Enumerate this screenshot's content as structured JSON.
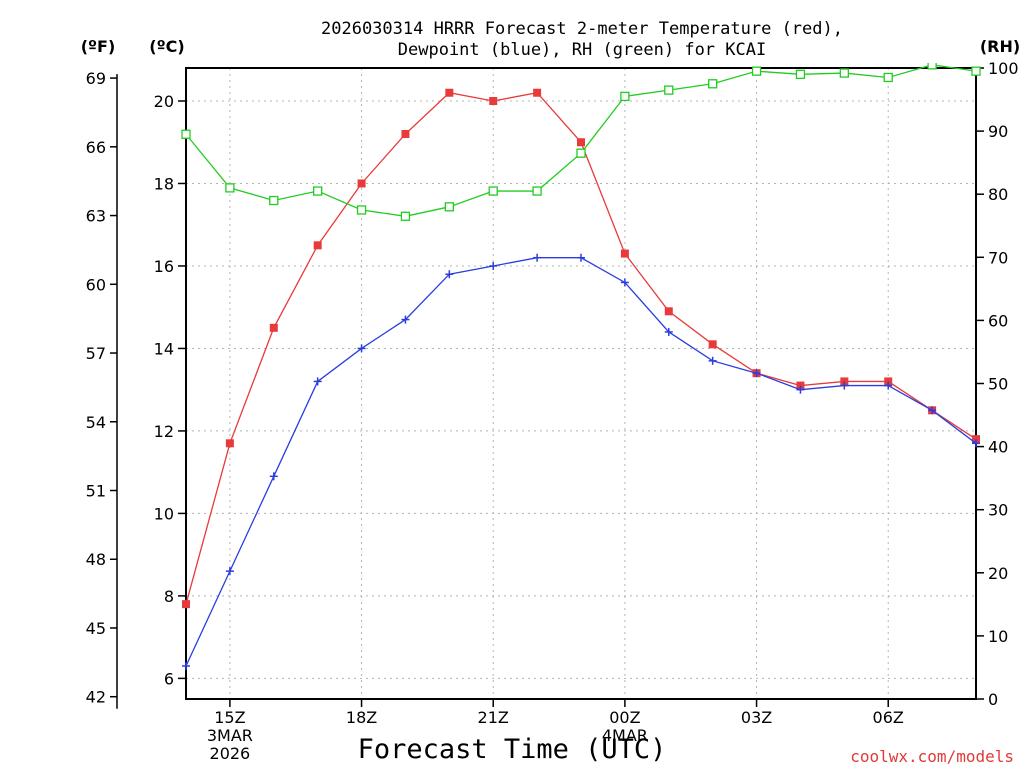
{
  "chart_data": {
    "type": "line",
    "title_lines": [
      "2026030314 HRRR Forecast 2-meter Temperature (red),",
      "Dewpoint (blue), RH (green) for KCAI"
    ],
    "xlabel": "Forecast Time (UTC)",
    "credit": "coolwx.com/models",
    "unit_labels": {
      "f": "(ºF)",
      "c": "(ºC)",
      "rh": "(RH)"
    },
    "hours": [
      14,
      15,
      16,
      17,
      18,
      19,
      20,
      21,
      22,
      23,
      24,
      25,
      26,
      27,
      28,
      29,
      30,
      31,
      32
    ],
    "x_ticks": [
      {
        "hour": 15,
        "label": "15Z",
        "sub": [
          "3MAR",
          "2026"
        ]
      },
      {
        "hour": 18,
        "label": "18Z",
        "sub": []
      },
      {
        "hour": 21,
        "label": "21Z",
        "sub": []
      },
      {
        "hour": 24,
        "label": "00Z",
        "sub": [
          "4MAR"
        ]
      },
      {
        "hour": 27,
        "label": "03Z",
        "sub": []
      },
      {
        "hour": 30,
        "label": "06Z",
        "sub": []
      }
    ],
    "c_axis": {
      "min": 5.5,
      "max": 20.8,
      "ticks": [
        "6",
        "8",
        "10",
        "12",
        "14",
        "16",
        "18",
        "20"
      ]
    },
    "f_axis": {
      "ticks": [
        "42",
        "45",
        "48",
        "51",
        "54",
        "57",
        "60",
        "63",
        "66",
        "69"
      ]
    },
    "rh_axis": {
      "min": 0,
      "max": 100,
      "ticks": [
        "0",
        "10",
        "20",
        "30",
        "40",
        "50",
        "60",
        "70",
        "80",
        "90",
        "100"
      ]
    },
    "series": [
      {
        "name": "Temperature",
        "color": "#e83a3a",
        "marker": "filled-square",
        "axis": "c",
        "values": [
          7.8,
          11.7,
          14.5,
          16.5,
          18.0,
          19.2,
          20.2,
          20.0,
          20.2,
          19.0,
          16.3,
          14.9,
          14.1,
          13.4,
          13.1,
          13.2,
          13.2,
          12.5,
          11.8
        ]
      },
      {
        "name": "Dewpoint",
        "color": "#2a3ee0",
        "marker": "plus",
        "axis": "c",
        "values": [
          6.3,
          8.6,
          10.9,
          13.2,
          14.0,
          14.7,
          15.8,
          16.0,
          16.2,
          16.2,
          15.6,
          14.4,
          13.7,
          13.4,
          13.0,
          13.1,
          13.1,
          12.5,
          11.7
        ]
      },
      {
        "name": "RH",
        "color": "#22cc22",
        "marker": "open-square",
        "axis": "rh",
        "values": [
          89.5,
          81.0,
          79.0,
          80.5,
          77.5,
          76.5,
          78.0,
          80.5,
          80.5,
          86.5,
          95.5,
          96.5,
          97.5,
          99.5,
          99.0,
          99.2,
          98.5,
          100.5,
          99.5
        ]
      }
    ]
  }
}
